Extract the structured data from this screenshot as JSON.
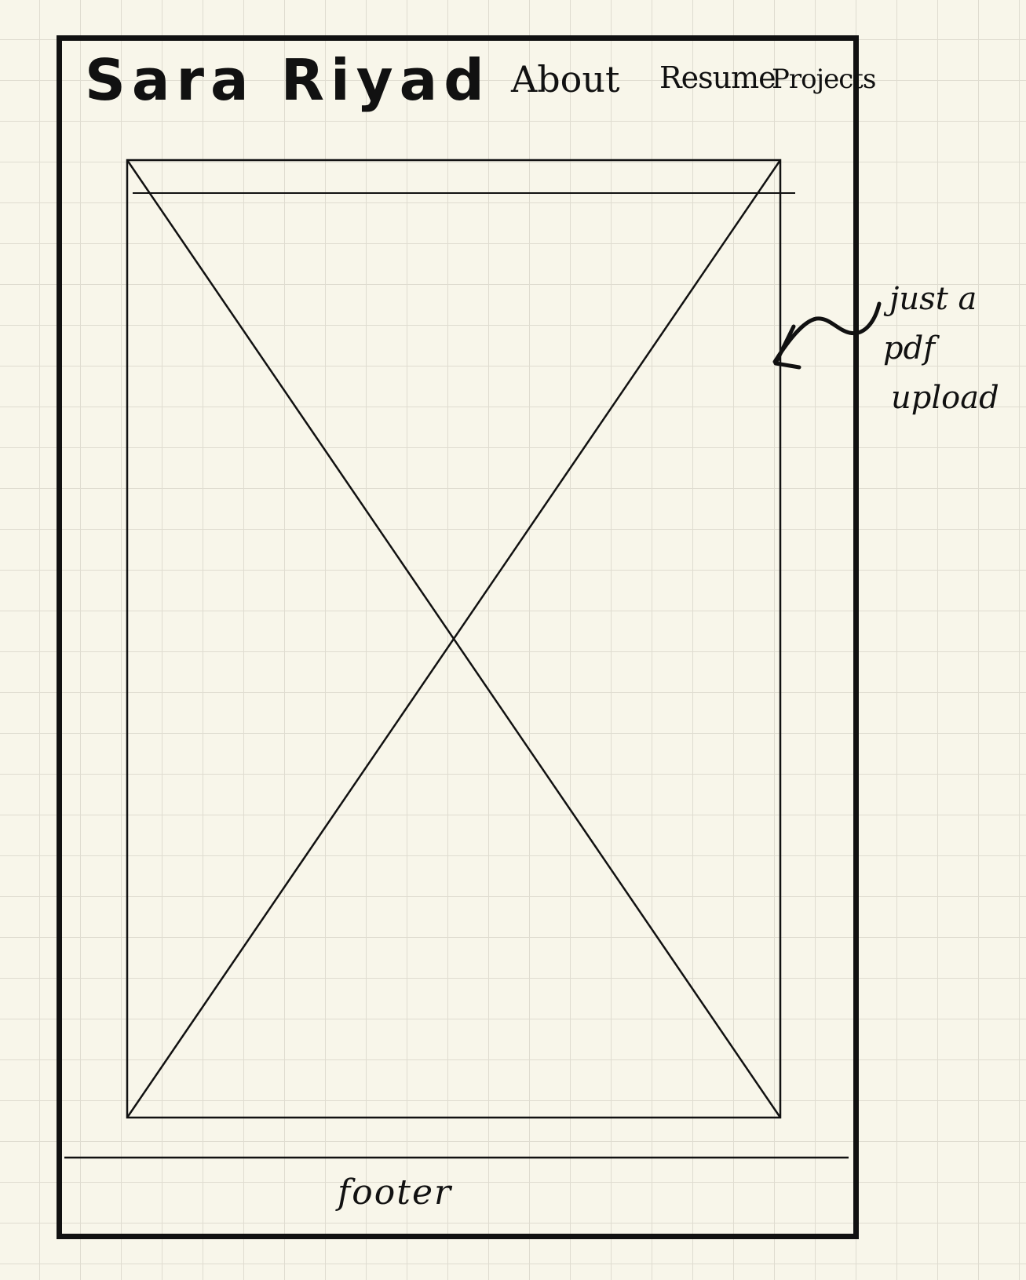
{
  "header": {
    "site_name": "Sara Riyad",
    "nav": {
      "about": "About",
      "resume": "Resume",
      "projects": "Projects"
    }
  },
  "main": {
    "placeholder_icon": "image-placeholder-icon"
  },
  "annotation": {
    "lines": [
      "just a",
      "pdf",
      "upload"
    ],
    "arrow_icon": "arrow-left-icon"
  },
  "footer": {
    "label": "footer"
  }
}
